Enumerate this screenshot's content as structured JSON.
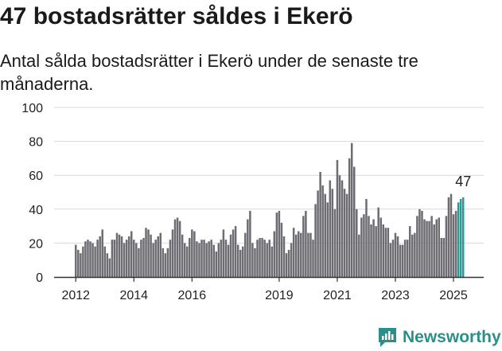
{
  "title": "47 bostadsrätter såldes i Ekerö",
  "subtitle": "Antal sålda bostadsrätter i Ekerö under de senaste tre månaderna.",
  "brand": {
    "name": "Newsworthy",
    "color": "#2a8f8a"
  },
  "colors": {
    "bar": "#6d6c72",
    "highlight": "#2a9a98",
    "grid": "#d9d9d9",
    "axis": "#333333"
  },
  "chart_data": {
    "type": "bar",
    "title": "",
    "xlabel": "",
    "ylabel": "",
    "ylim": [
      0,
      100
    ],
    "yticks": [
      0,
      20,
      40,
      60,
      80,
      100
    ],
    "grid": true,
    "x_tick_labels": [
      {
        "label": "2012",
        "index": 0
      },
      {
        "label": "2014",
        "index": 24
      },
      {
        "label": "2016",
        "index": 48
      },
      {
        "label": "2019",
        "index": 84
      },
      {
        "label": "2021",
        "index": 108
      },
      {
        "label": "2023",
        "index": 132
      },
      {
        "label": "2025",
        "index": 156
      }
    ],
    "start_month": "2012-01",
    "values": [
      19,
      16,
      14,
      18,
      21,
      22,
      21,
      20,
      18,
      22,
      24,
      28,
      18,
      14,
      11,
      22,
      22,
      26,
      25,
      24,
      20,
      22,
      24,
      27,
      22,
      20,
      17,
      22,
      23,
      29,
      28,
      25,
      20,
      22,
      24,
      26,
      17,
      14,
      17,
      22,
      28,
      34,
      35,
      33,
      25,
      20,
      18,
      23,
      28,
      27,
      21,
      20,
      22,
      22,
      20,
      21,
      22,
      19,
      15,
      20,
      22,
      28,
      22,
      19,
      25,
      28,
      30,
      19,
      16,
      18,
      26,
      34,
      39,
      20,
      17,
      22,
      23,
      23,
      22,
      20,
      22,
      18,
      27,
      38,
      39,
      32,
      24,
      14,
      16,
      20,
      29,
      25,
      27,
      26,
      36,
      39,
      26,
      26,
      22,
      43,
      51,
      62,
      54,
      49,
      44,
      57,
      52,
      40,
      69,
      60,
      57,
      52,
      49,
      70,
      79,
      65,
      40,
      25,
      35,
      37,
      46,
      36,
      31,
      34,
      30,
      41,
      35,
      31,
      29,
      29,
      20,
      22,
      26,
      24,
      19,
      19,
      22,
      22,
      30,
      25,
      26,
      36,
      40,
      39,
      34,
      33,
      33,
      36,
      31,
      34,
      35,
      23,
      23,
      36,
      47,
      49,
      37,
      39,
      44,
      46,
      47
    ],
    "highlight_count": 3,
    "annotation": {
      "text": "47",
      "value": 47
    }
  }
}
